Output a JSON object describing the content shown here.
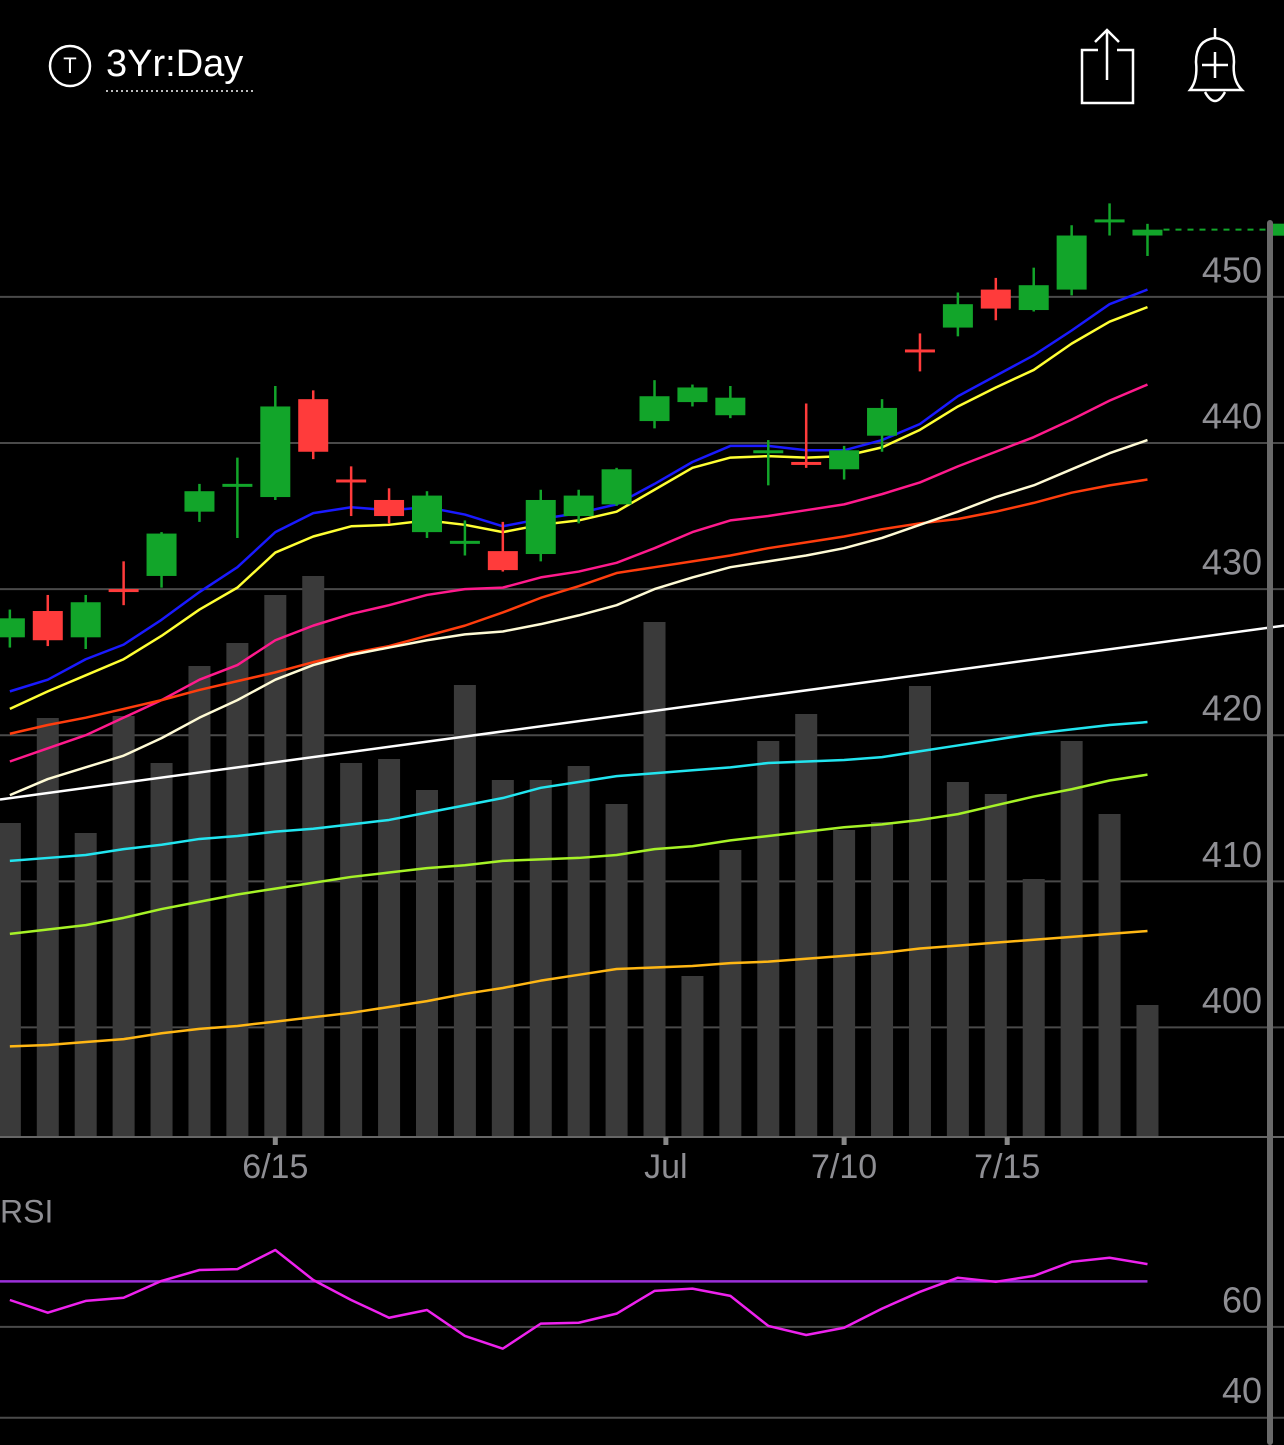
{
  "header": {
    "timeframe": "3Yr:Day"
  },
  "chart_data": [
    {
      "type": "candlestick",
      "xlim": [
        -0.26,
        33.6
      ],
      "xticks": [
        {
          "value": 7,
          "label": "6/15"
        },
        {
          "value": 17.3,
          "label": "Jul"
        },
        {
          "value": 22,
          "label": "7/10"
        },
        {
          "value": 26.3,
          "label": "7/15"
        }
      ],
      "ylim": [
        392.5,
        458
      ],
      "yticks": [
        400,
        410,
        420,
        430,
        440,
        450
      ],
      "grid": true,
      "up_color": "#12a52a",
      "down_color": "#ff3b3b",
      "open": [
        426.7,
        428.5,
        426.7,
        429.9,
        430.9,
        435.3,
        437.0,
        436.3,
        443.0,
        437.4,
        436.1,
        433.9,
        433.1,
        432.6,
        432.4,
        435.0,
        435.8,
        441.5,
        442.8,
        441.9,
        439.3,
        438.6,
        438.2,
        440.5,
        446.3,
        447.9,
        450.5,
        449.1,
        450.5,
        455.1,
        454.2
      ],
      "high": [
        428.6,
        429.6,
        429.6,
        431.9,
        433.9,
        437.2,
        439.0,
        443.9,
        443.6,
        438.4,
        436.9,
        436.7,
        434.7,
        434.6,
        436.8,
        436.8,
        438.3,
        444.3,
        444.0,
        443.9,
        440.2,
        442.7,
        439.8,
        443.0,
        447.5,
        450.3,
        451.3,
        452.0,
        454.9,
        456.4,
        455.0
      ],
      "low": [
        426.0,
        426.1,
        425.9,
        428.9,
        430.1,
        434.6,
        433.5,
        436.1,
        438.9,
        435.0,
        434.5,
        433.5,
        432.3,
        431.2,
        431.9,
        434.5,
        435.7,
        441.0,
        442.5,
        441.7,
        437.1,
        438.3,
        437.5,
        439.4,
        444.9,
        447.3,
        448.4,
        449.0,
        450.1,
        454.2,
        452.8
      ],
      "close": [
        428.0,
        426.5,
        429.1,
        429.8,
        433.8,
        436.7,
        437.1,
        442.5,
        439.4,
        437.3,
        435.0,
        436.4,
        433.2,
        431.3,
        436.1,
        436.4,
        438.2,
        443.2,
        443.8,
        443.1,
        439.4,
        438.5,
        439.5,
        442.4,
        446.2,
        449.5,
        449.2,
        450.8,
        454.2,
        455.2,
        454.6
      ],
      "volume": [
        314,
        419,
        304,
        421,
        374,
        471,
        494,
        542,
        561,
        374,
        378,
        347,
        452,
        357,
        357,
        371,
        333,
        515,
        161,
        287,
        396,
        423,
        307,
        315,
        451,
        355,
        343,
        258,
        396,
        323,
        132
      ],
      "volume_lim": [
        0,
        1000
      ],
      "volume_color": "#3a3a3a",
      "last_price_color": "#12a52a",
      "series": [
        {
          "color": "#1a1aff",
          "values": [
            423.0,
            423.8,
            425.2,
            426.2,
            427.9,
            429.8,
            431.5,
            433.9,
            435.2,
            435.6,
            435.4,
            435.6,
            435.1,
            434.3,
            434.8,
            435.2,
            435.8,
            437.2,
            438.7,
            439.8,
            439.8,
            439.5,
            439.5,
            440.2,
            441.3,
            443.2,
            444.6,
            446.0,
            447.7,
            449.5,
            450.5
          ]
        },
        {
          "color": "#ffff33",
          "values": [
            421.8,
            423.0,
            424.1,
            425.2,
            426.8,
            428.6,
            430.1,
            432.5,
            433.6,
            434.3,
            434.4,
            434.7,
            434.4,
            433.9,
            434.4,
            434.7,
            435.3,
            436.8,
            438.3,
            439.0,
            439.1,
            439.0,
            439.1,
            439.7,
            440.9,
            442.5,
            443.8,
            445.0,
            446.8,
            448.3,
            449.3
          ]
        },
        {
          "color": "#ff1a8c",
          "values": [
            418.2,
            419.1,
            420.0,
            421.2,
            422.4,
            423.8,
            424.8,
            426.5,
            427.5,
            428.3,
            428.9,
            429.6,
            430.0,
            430.1,
            430.8,
            431.2,
            431.8,
            432.8,
            433.9,
            434.7,
            435.0,
            435.4,
            435.8,
            436.5,
            437.3,
            438.4,
            439.4,
            440.4,
            441.6,
            442.9,
            444.0
          ]
        },
        {
          "color": "#ff3d0d",
          "values": [
            420.1,
            420.7,
            421.2,
            421.8,
            422.4,
            423.1,
            423.7,
            424.3,
            425.0,
            425.6,
            426.1,
            426.8,
            427.5,
            428.4,
            429.4,
            430.2,
            431.1,
            431.5,
            431.9,
            432.3,
            432.8,
            433.2,
            433.6,
            434.1,
            434.5,
            434.8,
            435.3,
            435.9,
            436.6,
            437.1,
            437.5
          ]
        },
        {
          "color": "#fffbd5",
          "values": [
            415.9,
            417.0,
            417.8,
            418.6,
            419.8,
            421.2,
            422.4,
            423.8,
            424.8,
            425.5,
            426.0,
            426.5,
            426.9,
            427.1,
            427.6,
            428.2,
            428.9,
            430.0,
            430.8,
            431.5,
            431.9,
            432.3,
            432.8,
            433.5,
            434.4,
            435.3,
            436.3,
            437.1,
            438.2,
            439.3,
            440.2
          ]
        },
        {
          "color": "#22e5f0",
          "values": [
            411.4,
            411.6,
            411.8,
            412.2,
            412.5,
            412.9,
            413.1,
            413.4,
            413.6,
            413.9,
            414.2,
            414.7,
            415.2,
            415.7,
            416.4,
            416.8,
            417.2,
            417.4,
            417.6,
            417.8,
            418.1,
            418.2,
            418.3,
            418.5,
            418.9,
            419.3,
            419.7,
            420.1,
            420.4,
            420.7,
            420.9
          ]
        },
        {
          "color": "#a6f227",
          "values": [
            406.4,
            406.7,
            407.0,
            407.5,
            408.1,
            408.6,
            409.1,
            409.5,
            409.9,
            410.3,
            410.6,
            410.9,
            411.1,
            411.4,
            411.5,
            411.6,
            411.8,
            412.2,
            412.4,
            412.8,
            413.1,
            413.4,
            413.7,
            413.9,
            414.2,
            414.6,
            415.2,
            415.8,
            416.3,
            416.9,
            417.3
          ]
        },
        {
          "color": "#ffb714",
          "values": [
            398.7,
            398.8,
            399.0,
            399.2,
            399.6,
            399.9,
            400.1,
            400.4,
            400.7,
            401.0,
            401.4,
            401.8,
            402.3,
            402.7,
            403.2,
            403.6,
            404.0,
            404.1,
            404.2,
            404.4,
            404.5,
            404.7,
            404.9,
            405.1,
            405.4,
            405.6,
            405.8,
            406.0,
            406.2,
            406.4,
            406.6
          ]
        }
      ],
      "trendline": {
        "color": "#ffffff",
        "x": [
          -0.26,
          33.6
        ],
        "values": [
          415.6,
          427.5
        ]
      }
    },
    {
      "type": "line",
      "label": "RSI",
      "xlim": [
        -0.26,
        33.6
      ],
      "ylim": [
        34,
        81.3
      ],
      "yticks": [
        40,
        60
      ],
      "grid": true,
      "reference_line": {
        "value": 70,
        "color": "#9b30d9"
      },
      "series": [
        {
          "color": "#ee22ee",
          "values": [
            65.9,
            63.1,
            65.7,
            66.4,
            70.1,
            72.5,
            72.7,
            76.9,
            70.3,
            65.9,
            62.0,
            63.7,
            58.0,
            55.2,
            60.7,
            60.9,
            62.9,
            67.9,
            68.4,
            66.8,
            60.2,
            58.2,
            59.8,
            64.0,
            67.7,
            70.8,
            69.9,
            71.2,
            74.3,
            75.2,
            73.8
          ]
        }
      ]
    }
  ]
}
